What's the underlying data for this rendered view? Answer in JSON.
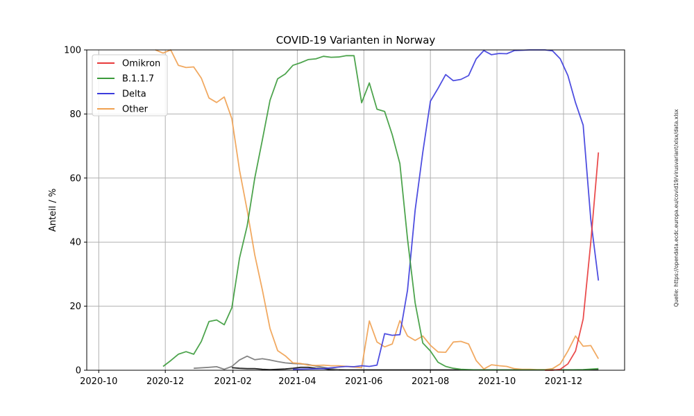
{
  "chart_data": {
    "type": "line",
    "title": "COVID-19 Varianten in Norway",
    "xlabel": "",
    "ylabel": "Anteil / %",
    "source": "Quelle: https://opendata.ecdc.europa.eu/covid19/virusvariant/xlsx/data.xlsx",
    "xlim": [
      "2020-09-20",
      "2022-01-26"
    ],
    "ylim": [
      0,
      100
    ],
    "x_ticks": [
      "2020-10",
      "2020-12",
      "2021-02",
      "2021-04",
      "2021-06",
      "2021-08",
      "2021-10",
      "2021-12"
    ],
    "x_tick_dates": [
      "2020-10-01",
      "2020-12-01",
      "2021-02-01",
      "2021-04-01",
      "2021-06-01",
      "2021-08-01",
      "2021-10-01",
      "2021-12-01"
    ],
    "y_ticks": [
      "0",
      "20",
      "40",
      "60",
      "80",
      "100"
    ],
    "y_tick_values": [
      0,
      20,
      40,
      60,
      80,
      100
    ],
    "grid": true,
    "legend_position": "top-left",
    "legend": [
      "Omikron",
      "B.1.1.7",
      "Delta",
      "Other"
    ],
    "series": [
      {
        "name": "Omikron",
        "color": "#e8393a",
        "x": [
          "2021-11-14",
          "2021-11-21",
          "2021-11-28",
          "2021-12-05",
          "2021-12-12",
          "2021-12-19",
          "2021-12-26",
          "2022-01-02"
        ],
        "values": [
          0,
          0,
          0.3,
          2,
          6,
          16,
          40,
          68
        ]
      },
      {
        "name": "B.1.1.7",
        "color": "#3a9a3a",
        "x": [
          "2020-11-29",
          "2020-12-06",
          "2020-12-13",
          "2020-12-20",
          "2020-12-27",
          "2021-01-03",
          "2021-01-10",
          "2021-01-17",
          "2021-01-24",
          "2021-01-31",
          "2021-02-07",
          "2021-02-14",
          "2021-02-21",
          "2021-02-28",
          "2021-03-07",
          "2021-03-14",
          "2021-03-21",
          "2021-03-28",
          "2021-04-04",
          "2021-04-11",
          "2021-04-18",
          "2021-04-25",
          "2021-05-02",
          "2021-05-09",
          "2021-05-16",
          "2021-05-23",
          "2021-05-30",
          "2021-06-06",
          "2021-06-13",
          "2021-06-20",
          "2021-06-27",
          "2021-07-04",
          "2021-07-11",
          "2021-07-18",
          "2021-07-25",
          "2021-08-01",
          "2021-08-08",
          "2021-08-15",
          "2021-08-22",
          "2021-08-29",
          "2021-09-05",
          "2021-09-12",
          "2021-09-26",
          "2021-10-10",
          "2021-10-24",
          "2021-11-07",
          "2021-11-21",
          "2021-12-05",
          "2021-12-19",
          "2022-01-02"
        ],
        "values": [
          1.2,
          3,
          5,
          5.8,
          5,
          9,
          15.2,
          15.7,
          14.2,
          19.5,
          35,
          45,
          60,
          72,
          84.3,
          91,
          92.5,
          95.2,
          96,
          97,
          97.2,
          98,
          97.7,
          97.8,
          98.2,
          98.2,
          83.5,
          89.7,
          81.5,
          80.8,
          73.5,
          64.5,
          41,
          21,
          8.5,
          6,
          2.5,
          1.2,
          0.6,
          0.3,
          0.2,
          0.1,
          0.1,
          0.1,
          0.1,
          0.1,
          0.1,
          0.1,
          0.2,
          0.5
        ]
      },
      {
        "name": "Delta",
        "color": "#3b3bdd",
        "x": [
          "2021-03-28",
          "2021-04-25",
          "2021-05-09",
          "2021-05-16",
          "2021-05-23",
          "2021-05-30",
          "2021-06-06",
          "2021-06-13",
          "2021-06-20",
          "2021-06-27",
          "2021-07-04",
          "2021-07-11",
          "2021-07-18",
          "2021-07-25",
          "2021-08-01",
          "2021-08-08",
          "2021-08-15",
          "2021-08-22",
          "2021-08-29",
          "2021-09-05",
          "2021-09-12",
          "2021-09-19",
          "2021-09-26",
          "2021-10-03",
          "2021-10-10",
          "2021-10-17",
          "2021-10-24",
          "2021-10-31",
          "2021-11-07",
          "2021-11-14",
          "2021-11-21",
          "2021-11-28",
          "2021-12-05",
          "2021-12-12",
          "2021-12-19",
          "2021-12-26",
          "2022-01-02"
        ],
        "values": [
          0.3,
          0.5,
          1,
          1.2,
          1.1,
          1.4,
          1.2,
          1.6,
          11.4,
          10.9,
          11.1,
          25,
          50,
          68,
          84,
          88,
          92.3,
          90.4,
          90.8,
          92,
          97.2,
          99.8,
          98.5,
          98.9,
          98.8,
          99.8,
          99.9,
          100,
          100,
          100,
          99.7,
          97.2,
          92,
          83.5,
          76.5,
          47,
          28
        ]
      },
      {
        "name": "Other",
        "color": "#f0a050",
        "x": [
          "2020-11-22",
          "2020-11-29",
          "2020-12-06",
          "2020-12-13",
          "2020-12-20",
          "2020-12-27",
          "2021-01-03",
          "2021-01-10",
          "2021-01-17",
          "2021-01-24",
          "2021-01-31",
          "2021-02-07",
          "2021-02-14",
          "2021-02-21",
          "2021-02-28",
          "2021-03-07",
          "2021-03-14",
          "2021-03-21",
          "2021-03-28",
          "2021-04-04",
          "2021-04-11",
          "2021-04-18",
          "2021-04-25",
          "2021-05-02",
          "2021-05-09",
          "2021-05-16",
          "2021-05-23",
          "2021-05-30",
          "2021-06-06",
          "2021-06-13",
          "2021-06-20",
          "2021-06-27",
          "2021-07-04",
          "2021-07-11",
          "2021-07-18",
          "2021-07-25",
          "2021-08-01",
          "2021-08-08",
          "2021-08-15",
          "2021-08-22",
          "2021-08-29",
          "2021-09-05",
          "2021-09-12",
          "2021-09-19",
          "2021-09-26",
          "2021-10-03",
          "2021-10-10",
          "2021-10-17",
          "2021-10-24",
          "2021-10-31",
          "2021-11-07",
          "2021-11-14",
          "2021-11-21",
          "2021-11-28",
          "2021-12-05",
          "2021-12-12",
          "2021-12-19",
          "2021-12-26",
          "2022-01-02"
        ],
        "values": [
          100,
          99,
          100,
          95.2,
          94.5,
          94.7,
          91.2,
          85,
          83.6,
          85.3,
          78.5,
          62.5,
          50,
          36,
          25,
          13,
          6.1,
          4.5,
          2.3,
          2.1,
          1.6,
          1.5,
          1.6,
          1.4,
          1.4,
          1.2,
          1.0,
          0.8,
          15.4,
          8.8,
          7.3,
          8.2,
          15.5,
          10.7,
          9.3,
          10.7,
          7.8,
          5.7,
          5.6,
          8.8,
          9.0,
          8.2,
          3.0,
          0.4,
          1.7,
          1.4,
          1.2,
          0.5,
          0.3,
          0.3,
          0.2,
          0.2,
          0.5,
          2,
          6,
          10.7,
          7.5,
          7.7,
          3.6
        ]
      },
      {
        "name": "",
        "color": "#777777",
        "x": [
          "2020-12-27",
          "2021-01-10",
          "2021-01-17",
          "2021-01-24",
          "2021-01-31",
          "2021-02-07",
          "2021-02-14",
          "2021-02-21",
          "2021-02-28",
          "2021-03-07",
          "2021-03-14",
          "2021-03-21",
          "2021-03-28",
          "2021-04-04",
          "2021-04-11",
          "2021-04-18",
          "2021-04-25",
          "2021-05-02",
          "2021-05-09"
        ],
        "values": [
          0.6,
          0.9,
          1.1,
          0.3,
          1.2,
          3.2,
          4.4,
          3.3,
          3.6,
          3.2,
          2.7,
          2.3,
          2.1,
          2.0,
          1.8,
          1.3,
          0.9,
          0.5,
          0.2
        ]
      },
      {
        "name": "",
        "color": "#111111",
        "x": [
          "2021-01-31",
          "2021-02-07",
          "2021-02-14",
          "2021-02-21",
          "2021-02-28",
          "2021-03-07",
          "2021-03-14",
          "2021-03-21",
          "2021-03-28",
          "2021-04-04",
          "2021-04-11",
          "2021-04-18",
          "2021-04-25",
          "2021-05-02",
          "2021-05-16",
          "2021-06-06",
          "2021-07-04",
          "2021-08-01",
          "2021-09-05",
          "2021-10-10",
          "2021-11-14",
          "2021-12-19",
          "2022-01-02"
        ],
        "values": [
          0.8,
          0.6,
          0.5,
          0.5,
          0.3,
          0.2,
          0.3,
          0.4,
          0.6,
          0.9,
          0.9,
          0.6,
          0.5,
          0.2,
          0.1,
          0.1,
          0.1,
          0.1,
          0.1,
          0.1,
          0.1,
          0.1,
          0.1
        ]
      }
    ]
  }
}
